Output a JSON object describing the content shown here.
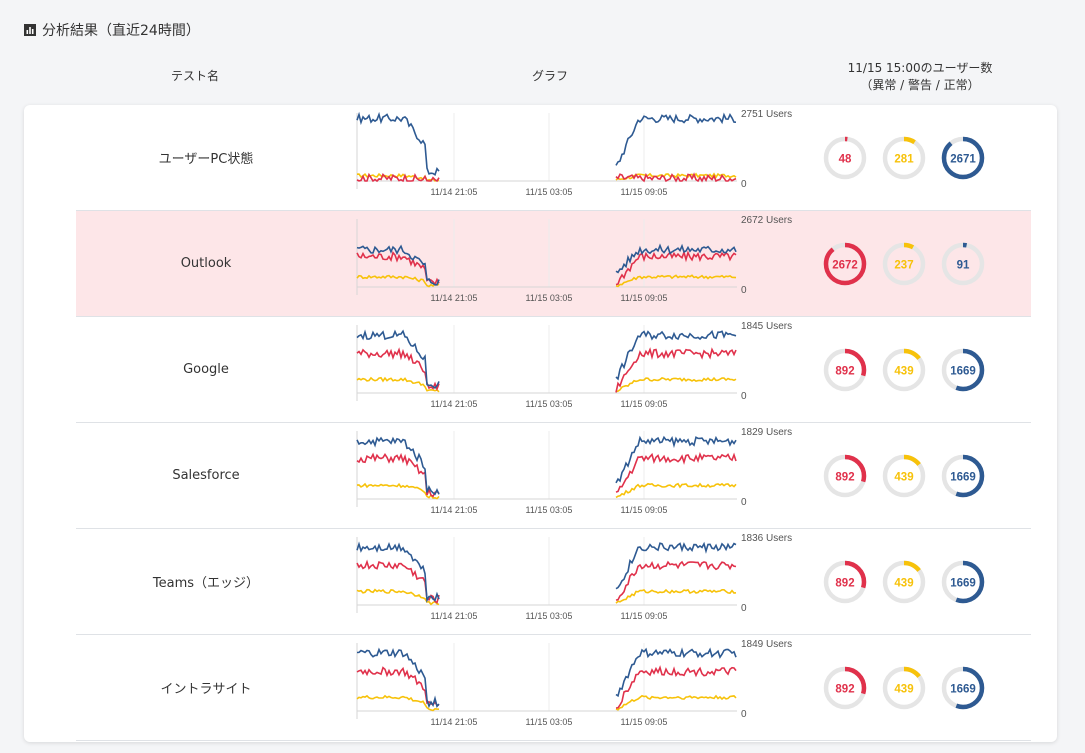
{
  "header": {
    "title": "分析結果（直近24時間）",
    "col_test_name": "テスト名",
    "col_graph": "グラフ",
    "col_users_line1": "11/15 15:00のユーザー数",
    "col_users_line2": "（異常 / 警告 / 正常）"
  },
  "colors": {
    "abnormal": "#e0314b",
    "warning": "#f7c20a",
    "normal": "#2e5a92",
    "track": "#e5e5e5",
    "alert_row": "#fde6e8"
  },
  "x_ticks": [
    "11/14 21:05",
    "11/15 03:05",
    "11/15 09:05"
  ],
  "rows": [
    {
      "name": "ユーザーPC状態",
      "alert": false,
      "ymax_label": "2751 Users",
      "ymin_label": "0",
      "ymax": 2751,
      "abnormal": 48,
      "warning": 281,
      "normal": 2671,
      "normal_level": 0.92,
      "abnormal_level": 0.04,
      "warning_level": 0.08
    },
    {
      "name": "Outlook",
      "alert": true,
      "ymax_label": "2672 Users",
      "ymin_label": "0",
      "ymax": 2672,
      "abnormal": 2672,
      "warning": 237,
      "normal": 91,
      "normal_level": 0.55,
      "abnormal_level": 0.45,
      "warning_level": 0.15
    },
    {
      "name": "Google",
      "alert": false,
      "ymax_label": "1845 Users",
      "ymin_label": "0",
      "ymax": 1845,
      "abnormal": 892,
      "warning": 439,
      "normal": 1669,
      "normal_level": 0.85,
      "abnormal_level": 0.58,
      "warning_level": 0.2
    },
    {
      "name": "Salesforce",
      "alert": false,
      "ymax_label": "1829 Users",
      "ymin_label": "0",
      "ymax": 1829,
      "abnormal": 892,
      "warning": 439,
      "normal": 1669,
      "normal_level": 0.85,
      "abnormal_level": 0.6,
      "warning_level": 0.2
    },
    {
      "name": "Teams（エッジ）",
      "alert": false,
      "ymax_label": "1836 Users",
      "ymin_label": "0",
      "ymax": 1836,
      "abnormal": 892,
      "warning": 439,
      "normal": 1669,
      "normal_level": 0.85,
      "abnormal_level": 0.58,
      "warning_level": 0.2
    },
    {
      "name": "イントラサイト",
      "alert": false,
      "ymax_label": "1849 Users",
      "ymin_label": "0",
      "ymax": 1849,
      "abnormal": 892,
      "warning": 439,
      "normal": 1669,
      "normal_level": 0.85,
      "abnormal_level": 0.58,
      "warning_level": 0.2
    }
  ]
}
